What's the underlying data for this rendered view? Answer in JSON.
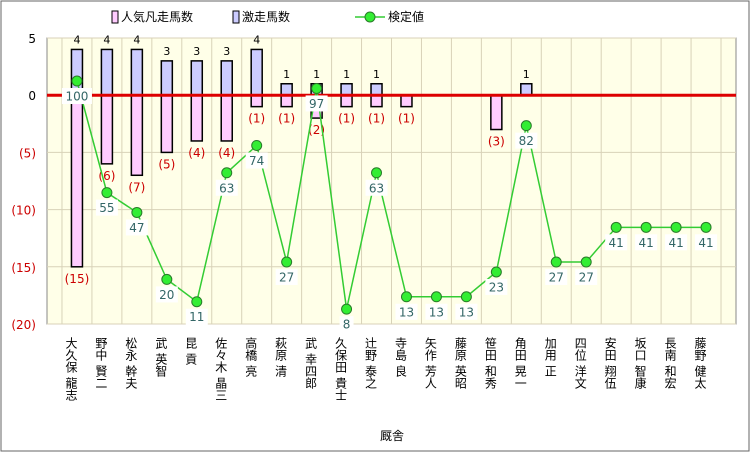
{
  "chart_data": {
    "type": "bar",
    "xlabel": "厩舎",
    "ylim": [
      -20,
      5
    ],
    "y_ticks": [
      "5",
      "0",
      "(5)",
      "(10)",
      "(15)",
      "(20)"
    ],
    "legend_placement": "top",
    "colors": {
      "popular_fill": "#ffccff",
      "upset_fill": "#ccccff",
      "bar_stroke": "#000000",
      "line": "#33cc33",
      "point": "#33ee33",
      "zero_line": "#dd0000",
      "plot_bg": "#ffffe8",
      "grid": "#d8d2b8",
      "neg_label": "#cc0000",
      "value_label": "#336666"
    },
    "categories": [
      "大久保 龍志",
      "野中 賢二",
      "松永 幹夫",
      "武 英智",
      "昆 貢",
      "佐々木 晶三",
      "高橋 亮",
      "萩原 清",
      "武 幸四郎",
      "久保田 貴士",
      "辻野 泰之",
      "寺島 良",
      "矢作 芳人",
      "藤原 英昭",
      "笹田 和秀",
      "角田 晃一",
      "加用 正",
      "四位 洋文",
      "安田 翔伍",
      "坂口 智康",
      "長南 和宏",
      "藤野 健太"
    ],
    "series": [
      {
        "name": "人気凡走馬数",
        "values": [
          -15,
          -6,
          -7,
          -5,
          -4,
          -4,
          -1,
          -1,
          -2,
          -1,
          -1,
          -1,
          0,
          0,
          -3,
          0,
          0,
          0,
          0,
          0,
          0,
          0
        ],
        "labels": [
          "(15)",
          "(6)",
          "(7)",
          "(5)",
          "(4)",
          "(4)",
          "(1)",
          "(1)",
          "(2)",
          "(1)",
          "(1)",
          "(1)",
          "",
          "",
          "(3)",
          "",
          "",
          "",
          "",
          "",
          "",
          ""
        ]
      },
      {
        "name": "激走馬数",
        "values": [
          4,
          4,
          4,
          3,
          3,
          3,
          4,
          1,
          1,
          1,
          1,
          0,
          0,
          0,
          0,
          1,
          0,
          0,
          0,
          0,
          0,
          0
        ],
        "labels": [
          "4",
          "4",
          "4",
          "3",
          "3",
          "3",
          "4",
          "1",
          "1",
          "1",
          "1",
          "",
          "",
          "",
          "",
          "1",
          "",
          "",
          "",
          "",
          "",
          ""
        ]
      },
      {
        "name": "検定値",
        "values": [
          100,
          55,
          47,
          20,
          11,
          63,
          74,
          27,
          97,
          8,
          63,
          13,
          13,
          13,
          23,
          82,
          27,
          27,
          41,
          41,
          41,
          41
        ],
        "labels": [
          "100",
          "55",
          "47",
          "20",
          "11",
          "63",
          "74",
          "27",
          "97",
          "8",
          "63",
          "13",
          "13",
          "13",
          "23",
          "82",
          "27",
          "27",
          "41",
          "41",
          "41",
          "41"
        ]
      }
    ]
  }
}
